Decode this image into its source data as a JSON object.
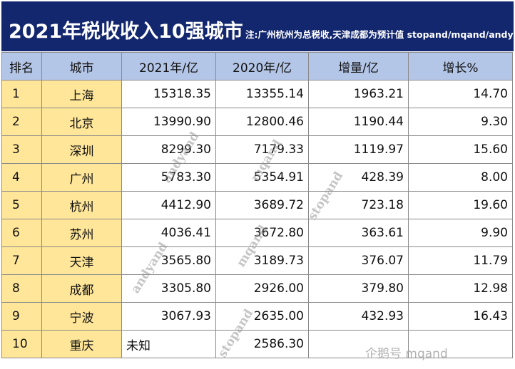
{
  "title": {
    "main": "2021年税收收入10强城市",
    "note": "注:广州杭州为总税收,天津成都为预计值  stopand/mqand/andyand"
  },
  "table": {
    "headers": [
      "排名",
      "城市",
      "2021年/亿",
      "2020年/亿",
      "增量/亿",
      "增长%"
    ],
    "rows": [
      {
        "rank": "1",
        "city": "上海",
        "y2021": "15318.35",
        "y2020": "13355.14",
        "increase": "1963.21",
        "growth": "14.70"
      },
      {
        "rank": "2",
        "city": "北京",
        "y2021": "13990.90",
        "y2020": "12800.46",
        "increase": "1190.44",
        "growth": "9.30"
      },
      {
        "rank": "3",
        "city": "深圳",
        "y2021": "8299.30",
        "y2020": "7179.33",
        "increase": "1119.97",
        "growth": "15.60"
      },
      {
        "rank": "4",
        "city": "广州",
        "y2021": "5783.30",
        "y2020": "5354.91",
        "increase": "428.39",
        "growth": "8.00"
      },
      {
        "rank": "5",
        "city": "杭州",
        "y2021": "4412.90",
        "y2020": "3689.72",
        "increase": "723.18",
        "growth": "19.60"
      },
      {
        "rank": "6",
        "city": "苏州",
        "y2021": "4036.41",
        "y2020": "3672.80",
        "increase": "363.61",
        "growth": "9.90"
      },
      {
        "rank": "7",
        "city": "天津",
        "y2021": "3565.80",
        "y2020": "3189.73",
        "increase": "376.07",
        "growth": "11.79"
      },
      {
        "rank": "8",
        "city": "成都",
        "y2021": "3305.80",
        "y2020": "2926.00",
        "increase": "379.80",
        "growth": "12.98"
      },
      {
        "rank": "9",
        "city": "宁波",
        "y2021": "3067.93",
        "y2020": "2635.00",
        "increase": "432.93",
        "growth": "16.43"
      },
      {
        "rank": "10",
        "city": "重庆",
        "y2021": "未知",
        "y2020": "2586.30",
        "increase": "",
        "growth": ""
      }
    ]
  },
  "watermarks": {
    "andyand": "andyand",
    "mqand": "mqand",
    "stopand": "stopand",
    "source": "企鹅号 mqand"
  },
  "colors": {
    "title_bg": "#13276e",
    "header_bg": "#b4c6e7",
    "rank_city_bg": "#ffe699"
  }
}
